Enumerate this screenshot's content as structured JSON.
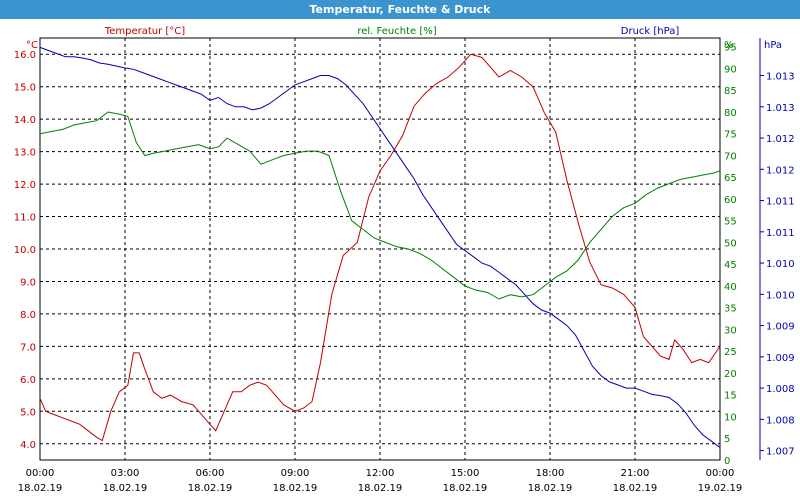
{
  "window": {
    "title": "Temperatur, Feuchte & Druck"
  },
  "chart_data": {
    "type": "line",
    "title": "Temperatur, Feuchte & Druck",
    "colors": {
      "temperature": "#c00000",
      "humidity": "#008000",
      "pressure": "#0000b0",
      "title_bg": "#3c94cf"
    },
    "x_ticks": [
      {
        "time": "00:00",
        "date": "18.02.19"
      },
      {
        "time": "03:00",
        "date": "18.02.19"
      },
      {
        "time": "06:00",
        "date": "18.02.19"
      },
      {
        "time": "09:00",
        "date": "18.02.19"
      },
      {
        "time": "12:00",
        "date": "18.02.19"
      },
      {
        "time": "15:00",
        "date": "18.02.19"
      },
      {
        "time": "18:00",
        "date": "18.02.19"
      },
      {
        "time": "21:00",
        "date": "18.02.19"
      },
      {
        "time": "00:00",
        "date": "19.02.19"
      }
    ],
    "xlim": [
      0,
      24
    ],
    "axes": {
      "temperature": {
        "label": "Temperatur [°C]",
        "unit": "°C",
        "ylim": [
          3.5,
          16.5
        ],
        "ticks": [
          "16.0",
          "15.0",
          "14.0",
          "13.0",
          "12.0",
          "11.0",
          "10.0",
          "9.0",
          "8.0",
          "7.0",
          "6.0",
          "5.0",
          "4.0"
        ]
      },
      "humidity": {
        "label": "rel. Feuchte [%]",
        "unit": "%",
        "ylim": [
          0,
          97
        ],
        "ticks": [
          "95",
          "90",
          "85",
          "80",
          "75",
          "70",
          "65",
          "60",
          "55",
          "50",
          "45",
          "40",
          "35",
          "30",
          "25",
          "20",
          "15",
          "10",
          "5",
          "0"
        ]
      },
      "pressure": {
        "label": "Druck [hPa]",
        "unit": "hPa",
        "ylim": [
          1006.85,
          1013.6
        ],
        "ticks": [
          "1.013",
          "1.013",
          "1.012",
          "1.012",
          "1.011",
          "1.011",
          "1.010",
          "1.010",
          "1.009",
          "1.009",
          "1.008",
          "1.008",
          "1.007"
        ]
      }
    },
    "series": [
      {
        "name": "Temperatur",
        "axis": "temperature",
        "x": [
          0,
          0.2,
          0.5,
          0.8,
          1.1,
          1.4,
          1.7,
          2.0,
          2.2,
          2.5,
          2.8,
          3.1,
          3.3,
          3.5,
          3.7,
          4.0,
          4.3,
          4.6,
          5.0,
          5.4,
          5.7,
          6.0,
          6.2,
          6.5,
          6.8,
          7.1,
          7.4,
          7.7,
          8.0,
          8.3,
          8.6,
          9.0,
          9.3,
          9.6,
          9.9,
          10.3,
          10.7,
          11.2,
          11.6,
          12.0,
          12.4,
          12.8,
          13.2,
          13.6,
          14.0,
          14.4,
          14.8,
          15.2,
          15.6,
          15.9,
          16.2,
          16.6,
          17.0,
          17.4,
          17.8,
          18.2,
          18.6,
          19.0,
          19.4,
          19.8,
          20.2,
          20.6,
          21.0,
          21.3,
          21.6,
          21.9,
          22.2,
          22.4,
          22.7,
          23.0,
          23.3,
          23.6,
          24.0
        ],
        "values": [
          5.4,
          5.0,
          4.9,
          4.8,
          4.7,
          4.6,
          4.4,
          4.2,
          4.1,
          5.0,
          5.6,
          5.8,
          6.8,
          6.8,
          6.3,
          5.6,
          5.4,
          5.5,
          5.3,
          5.2,
          4.9,
          4.6,
          4.4,
          5.0,
          5.6,
          5.6,
          5.8,
          5.9,
          5.8,
          5.5,
          5.2,
          5.0,
          5.1,
          5.3,
          6.5,
          8.6,
          9.8,
          10.2,
          11.6,
          12.4,
          12.9,
          13.5,
          14.4,
          14.8,
          15.1,
          15.3,
          15.6,
          16.0,
          15.9,
          15.6,
          15.3,
          15.5,
          15.3,
          15.0,
          14.2,
          13.6,
          12.1,
          10.8,
          9.6,
          8.9,
          8.8,
          8.6,
          8.2,
          7.3,
          7.0,
          6.7,
          6.6,
          7.2,
          6.9,
          6.5,
          6.6,
          6.5,
          7.0
        ]
      },
      {
        "name": "rel. Feuchte",
        "axis": "humidity",
        "x": [
          0,
          0.4,
          0.8,
          1.2,
          1.6,
          2.0,
          2.4,
          2.8,
          3.1,
          3.4,
          3.7,
          4.0,
          4.4,
          4.8,
          5.2,
          5.6,
          6.0,
          6.3,
          6.6,
          7.0,
          7.4,
          7.8,
          8.2,
          8.6,
          9.0,
          9.4,
          9.8,
          10.2,
          10.6,
          11.0,
          11.4,
          11.8,
          12.2,
          12.6,
          13.0,
          13.4,
          13.8,
          14.2,
          14.6,
          15.0,
          15.4,
          15.8,
          16.2,
          16.6,
          17.0,
          17.4,
          17.8,
          18.2,
          18.6,
          19.0,
          19.4,
          19.8,
          20.2,
          20.6,
          21.0,
          21.4,
          21.8,
          22.2,
          22.6,
          23.0,
          23.4,
          23.8,
          24.0
        ],
        "values": [
          75,
          75.5,
          76,
          77,
          77.5,
          78,
          80,
          79.5,
          79,
          73,
          70,
          70.5,
          71,
          71.5,
          72,
          72.5,
          71.5,
          72,
          74,
          72.5,
          71,
          68,
          69,
          70,
          70.5,
          71,
          71,
          70,
          62,
          55,
          53,
          51,
          50,
          49,
          48.5,
          47.5,
          46,
          44,
          42,
          40,
          39,
          38.5,
          37,
          38,
          37.5,
          38,
          40,
          42,
          43.5,
          46,
          50,
          53,
          56,
          58,
          59,
          61,
          62.5,
          63.5,
          64.5,
          65,
          65.5,
          66,
          66.5
        ]
      },
      {
        "name": "Druck",
        "axis": "pressure",
        "x": [
          0,
          0.3,
          0.6,
          0.9,
          1.2,
          1.5,
          1.8,
          2.1,
          2.4,
          2.7,
          3.0,
          3.3,
          3.6,
          3.9,
          4.2,
          4.5,
          4.8,
          5.1,
          5.4,
          5.7,
          6.0,
          6.3,
          6.6,
          6.9,
          7.2,
          7.5,
          7.8,
          8.1,
          8.4,
          8.7,
          9.0,
          9.3,
          9.6,
          9.9,
          10.2,
          10.5,
          10.8,
          11.1,
          11.4,
          11.7,
          12.0,
          12.3,
          12.6,
          12.9,
          13.2,
          13.5,
          13.8,
          14.1,
          14.4,
          14.7,
          15.0,
          15.3,
          15.6,
          15.9,
          16.2,
          16.5,
          16.8,
          17.1,
          17.4,
          17.7,
          18.0,
          18.3,
          18.6,
          18.9,
          19.2,
          19.5,
          19.8,
          20.1,
          20.4,
          20.7,
          21.0,
          21.3,
          21.6,
          21.9,
          22.2,
          22.5,
          22.8,
          23.1,
          23.4,
          23.7,
          24.0
        ],
        "values": [
          1013.45,
          1013.4,
          1013.35,
          1013.3,
          1013.3,
          1013.28,
          1013.25,
          1013.2,
          1013.18,
          1013.15,
          1013.12,
          1013.1,
          1013.05,
          1013.0,
          1012.95,
          1012.9,
          1012.85,
          1012.8,
          1012.75,
          1012.7,
          1012.6,
          1012.65,
          1012.55,
          1012.5,
          1012.5,
          1012.45,
          1012.48,
          1012.55,
          1012.65,
          1012.75,
          1012.85,
          1012.9,
          1012.95,
          1013.0,
          1013.0,
          1012.95,
          1012.85,
          1012.7,
          1012.55,
          1012.35,
          1012.15,
          1011.95,
          1011.75,
          1011.55,
          1011.35,
          1011.1,
          1010.9,
          1010.7,
          1010.5,
          1010.3,
          1010.2,
          1010.1,
          1010.0,
          1009.95,
          1009.85,
          1009.75,
          1009.65,
          1009.5,
          1009.35,
          1009.25,
          1009.2,
          1009.1,
          1009.0,
          1008.85,
          1008.6,
          1008.35,
          1008.2,
          1008.1,
          1008.05,
          1008.0,
          1008.0,
          1007.95,
          1007.9,
          1007.88,
          1007.85,
          1007.75,
          1007.6,
          1007.4,
          1007.25,
          1007.15,
          1007.05
        ]
      }
    ]
  }
}
